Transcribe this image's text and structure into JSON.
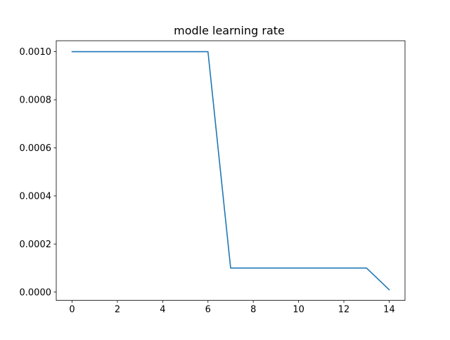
{
  "chart_data": {
    "type": "line",
    "title": "modle learning rate",
    "xlabel": "",
    "ylabel": "",
    "xlim": [
      -0.7,
      14.7
    ],
    "ylim": [
      -3.45e-05,
      0.0010455
    ],
    "xticks": [
      0,
      2,
      4,
      6,
      8,
      10,
      12,
      14
    ],
    "xtick_labels": [
      "0",
      "2",
      "4",
      "6",
      "8",
      "10",
      "12",
      "14"
    ],
    "yticks": [
      0.0,
      0.0002,
      0.0004,
      0.0006,
      0.0008,
      0.001
    ],
    "ytick_labels": [
      "0.0000",
      "0.0002",
      "0.0004",
      "0.0006",
      "0.0008",
      "0.0010"
    ],
    "grid": false,
    "series": [
      {
        "x": [
          0,
          1,
          2,
          3,
          4,
          5,
          6,
          7,
          8,
          9,
          10,
          11,
          12,
          13,
          14
        ],
        "values": [
          0.001,
          0.001,
          0.001,
          0.001,
          0.001,
          0.001,
          0.001,
          0.0001,
          0.0001,
          0.0001,
          0.0001,
          0.0001,
          0.0001,
          0.0001,
          1e-05
        ],
        "color": "#1f77b4"
      }
    ]
  }
}
